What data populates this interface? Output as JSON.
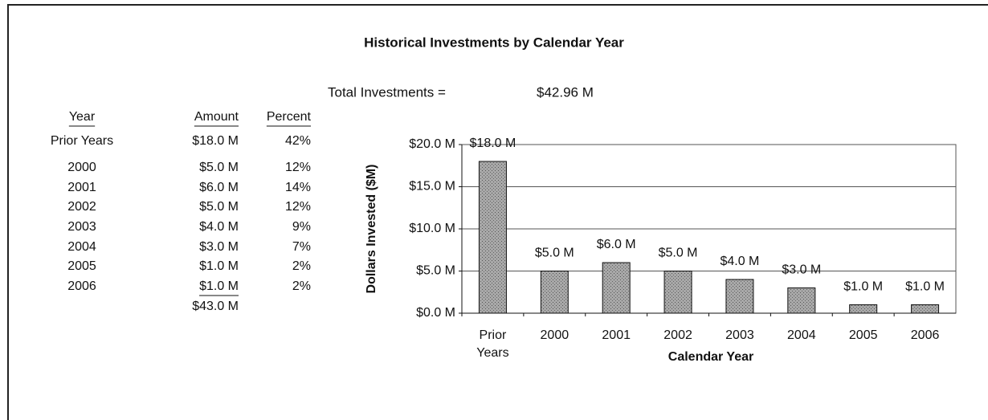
{
  "title": "Historical Investments by Calendar Year",
  "total": {
    "label": "Total Investments =",
    "value": "$42.96 M"
  },
  "table": {
    "headers": [
      "Year",
      "Amount",
      "Percent"
    ],
    "rows": [
      [
        "Prior Years",
        "$18.0 M",
        "42%"
      ],
      [
        "2000",
        "$5.0 M",
        "12%"
      ],
      [
        "2001",
        "$6.0 M",
        "14%"
      ],
      [
        "2002",
        "$5.0 M",
        "12%"
      ],
      [
        "2003",
        "$4.0 M",
        "9%"
      ],
      [
        "2004",
        "$3.0 M",
        "7%"
      ],
      [
        "2005",
        "$1.0 M",
        "2%"
      ],
      [
        "2006",
        "$1.0 M",
        "2%"
      ]
    ],
    "sum": "$43.0 M"
  },
  "chart_data": {
    "type": "bar",
    "categories": [
      "Prior Years",
      "2000",
      "2001",
      "2002",
      "2003",
      "2004",
      "2005",
      "2006"
    ],
    "values": [
      18,
      5,
      6,
      5,
      4,
      3,
      1,
      1
    ],
    "value_labels": [
      "$18.0 M",
      "$5.0 M",
      "$6.0 M",
      "$5.0 M",
      "$4.0 M",
      "$3.0 M",
      "$1.0 M",
      "$1.0 M"
    ],
    "ylim": [
      0,
      20
    ],
    "yticks": [
      {
        "value": 0,
        "label": "$0.0 M"
      },
      {
        "value": 5,
        "label": "$5.0 M"
      },
      {
        "value": 10,
        "label": "$10.0 M"
      },
      {
        "value": 15,
        "label": "$15.0 M"
      },
      {
        "value": 20,
        "label": "$20.0 M"
      }
    ],
    "xlabel": "Calendar Year",
    "ylabel": "Dollars Invested ($M)",
    "color": "#9c9c9c",
    "grid": true
  }
}
